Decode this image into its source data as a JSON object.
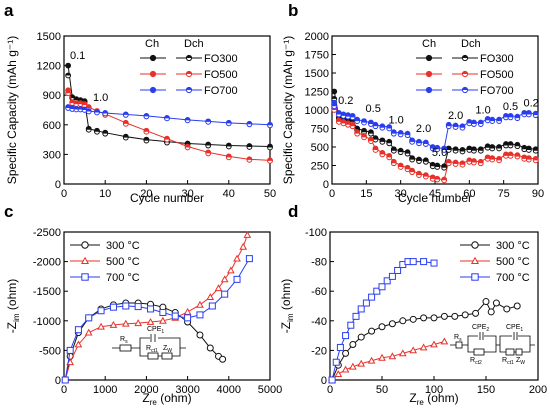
{
  "colors": {
    "black": "#111111",
    "red": "#e8312a",
    "blue": "#2a3ef0"
  },
  "chart_data": [
    {
      "panel": "a",
      "type": "scatter",
      "xlabel": "Cycle number",
      "ylabel": "Specific Capacity (mAh g⁻¹)",
      "xlim": [
        0,
        50
      ],
      "ylim": [
        0,
        1500
      ],
      "xticks": [
        "0",
        "10",
        "20",
        "30",
        "40",
        "50"
      ],
      "yticks": [
        "0",
        "300",
        "600",
        "900",
        "1200",
        "1500"
      ],
      "legend_headers": [
        "Ch",
        "Dch"
      ],
      "rate_labels": [
        "0.1",
        "1.0"
      ],
      "series": [
        {
          "name": "FO300",
          "color": "black",
          "x": [
            1,
            2,
            3,
            4,
            5,
            6,
            8,
            10,
            15,
            20,
            25,
            30,
            35,
            40,
            45,
            50
          ],
          "charge": [
            1200,
            880,
            860,
            850,
            840,
            560,
            540,
            520,
            480,
            450,
            430,
            410,
            400,
            390,
            385,
            380
          ],
          "discharge": [
            1100,
            870,
            850,
            840,
            830,
            550,
            530,
            510,
            470,
            440,
            420,
            400,
            390,
            380,
            375,
            370
          ]
        },
        {
          "name": "FO500",
          "color": "red",
          "x": [
            1,
            2,
            3,
            4,
            5,
            6,
            8,
            10,
            15,
            20,
            25,
            30,
            35,
            40,
            45,
            50
          ],
          "charge": [
            950,
            830,
            820,
            820,
            810,
            780,
            740,
            710,
            620,
            540,
            460,
            380,
            320,
            280,
            250,
            240
          ],
          "discharge": [
            920,
            820,
            810,
            810,
            800,
            770,
            730,
            700,
            610,
            530,
            450,
            370,
            310,
            270,
            245,
            235
          ]
        },
        {
          "name": "FO700",
          "color": "blue",
          "x": [
            1,
            2,
            3,
            4,
            5,
            6,
            8,
            10,
            15,
            20,
            25,
            30,
            35,
            40,
            45,
            50
          ],
          "charge": [
            780,
            770,
            760,
            760,
            755,
            740,
            730,
            720,
            705,
            690,
            670,
            650,
            635,
            620,
            610,
            600
          ],
          "discharge": [
            770,
            760,
            755,
            755,
            750,
            735,
            725,
            715,
            700,
            685,
            665,
            645,
            630,
            615,
            605,
            595
          ]
        }
      ]
    },
    {
      "panel": "b",
      "type": "scatter",
      "xlabel": "Cycle number",
      "ylabel": "Specific Capacity (mAh g⁻¹)",
      "xlim": [
        0,
        90
      ],
      "ylim": [
        0,
        2000
      ],
      "xticks": [
        "0",
        "15",
        "30",
        "45",
        "60",
        "75",
        "90"
      ],
      "yticks": [
        "0",
        "250",
        "500",
        "750",
        "1000",
        "1250",
        "1500",
        "1750",
        "2000"
      ],
      "legend_headers": [
        "Ch",
        "Dch"
      ],
      "rate_labels": [
        "0.2",
        "0.5",
        "1.0",
        "2.0",
        "5.0",
        "2.0",
        "1.0",
        "0.5",
        "0.2"
      ],
      "series": [
        {
          "name": "FO300",
          "color": "black",
          "x": [
            1,
            3,
            5,
            7,
            9,
            11,
            14,
            17,
            19,
            22,
            25,
            27,
            30,
            33,
            35,
            38,
            41,
            44,
            46,
            49,
            51,
            54,
            57,
            60,
            62,
            65,
            68,
            70,
            73,
            76,
            78,
            81,
            84,
            86,
            89
          ],
          "charge": [
            1250,
            900,
            880,
            870,
            860,
            750,
            720,
            700,
            620,
            590,
            570,
            470,
            450,
            430,
            350,
            330,
            320,
            260,
            250,
            240,
            480,
            470,
            460,
            480,
            470,
            470,
            510,
            500,
            500,
            540,
            540,
            530,
            490,
            480,
            470
          ],
          "discharge": [
            1150,
            880,
            860,
            850,
            840,
            730,
            700,
            680,
            600,
            570,
            550,
            450,
            430,
            410,
            330,
            310,
            300,
            240,
            230,
            220,
            460,
            450,
            440,
            460,
            450,
            450,
            490,
            480,
            480,
            520,
            520,
            510,
            470,
            460,
            450
          ]
        },
        {
          "name": "FO500",
          "color": "red",
          "x": [
            1,
            3,
            5,
            7,
            9,
            11,
            14,
            17,
            19,
            22,
            25,
            27,
            30,
            33,
            35,
            38,
            41,
            44,
            46,
            49,
            51,
            54,
            57,
            60,
            62,
            65,
            68,
            70,
            73,
            76,
            78,
            81,
            84,
            86,
            89
          ],
          "charge": [
            1050,
            860,
            840,
            820,
            800,
            700,
            650,
            600,
            480,
            420,
            380,
            300,
            250,
            220,
            180,
            140,
            120,
            90,
            70,
            60,
            300,
            290,
            280,
            320,
            310,
            300,
            360,
            350,
            340,
            400,
            400,
            390,
            360,
            350,
            340
          ],
          "discharge": [
            1000,
            840,
            820,
            800,
            780,
            680,
            630,
            580,
            460,
            400,
            360,
            280,
            230,
            200,
            160,
            120,
            100,
            70,
            60,
            50,
            280,
            270,
            260,
            300,
            290,
            280,
            340,
            330,
            320,
            380,
            380,
            370,
            340,
            330,
            320
          ]
        },
        {
          "name": "FO700",
          "color": "blue",
          "x": [
            1,
            3,
            5,
            7,
            9,
            11,
            14,
            17,
            19,
            22,
            25,
            27,
            30,
            33,
            35,
            38,
            41,
            44,
            46,
            49,
            51,
            54,
            57,
            60,
            62,
            65,
            68,
            70,
            73,
            76,
            78,
            81,
            84,
            86,
            89
          ],
          "charge": [
            1100,
            960,
            940,
            930,
            920,
            870,
            850,
            830,
            800,
            780,
            770,
            700,
            690,
            680,
            590,
            570,
            560,
            500,
            490,
            480,
            800,
            790,
            780,
            840,
            830,
            830,
            880,
            870,
            870,
            920,
            920,
            910,
            960,
            960,
            950
          ],
          "discharge": [
            1050,
            940,
            920,
            910,
            900,
            850,
            830,
            810,
            780,
            760,
            750,
            680,
            670,
            660,
            570,
            550,
            540,
            480,
            470,
            460,
            780,
            770,
            760,
            820,
            810,
            810,
            860,
            850,
            850,
            900,
            900,
            890,
            940,
            940,
            930
          ]
        }
      ]
    },
    {
      "panel": "c",
      "type": "scatter",
      "xlabel": "Z_re (ohm)",
      "ylabel": "-Z_im (ohm)",
      "xlim": [
        0,
        5000
      ],
      "ylim": [
        0,
        -2500
      ],
      "xticks": [
        "0",
        "1000",
        "2000",
        "3000",
        "4000",
        "5000"
      ],
      "yticks": [
        "0",
        "-500",
        "-1000",
        "-1500",
        "-2000",
        "-2500"
      ],
      "legend": [
        "300 °C",
        "500 °C",
        "700 °C"
      ],
      "circuit_labels": [
        "R_s",
        "CPE_1",
        "R_ct1",
        "Z_W"
      ],
      "series": [
        {
          "name": "300 °C",
          "color": "black",
          "marker": "circle",
          "x": [
            30,
            150,
            350,
            600,
            900,
            1200,
            1500,
            1800,
            2100,
            2400,
            2700,
            3000,
            3300,
            3550,
            3750,
            3850
          ],
          "y": [
            0,
            -400,
            -800,
            -1050,
            -1200,
            -1270,
            -1300,
            -1300,
            -1280,
            -1230,
            -1140,
            -980,
            -760,
            -540,
            -400,
            -350
          ]
        },
        {
          "name": "500 °C",
          "color": "red",
          "marker": "triangle",
          "x": [
            30,
            150,
            350,
            600,
            900,
            1200,
            1500,
            1800,
            2100,
            2400,
            2700,
            3000,
            3300,
            3550,
            3750,
            3900,
            4050,
            4200,
            4350,
            4450
          ],
          "y": [
            0,
            -300,
            -600,
            -800,
            -900,
            -930,
            -950,
            -960,
            -980,
            -1000,
            -1050,
            -1150,
            -1270,
            -1400,
            -1550,
            -1700,
            -1850,
            -2050,
            -2250,
            -2450
          ]
        },
        {
          "name": "700 °C",
          "color": "blue",
          "marker": "square",
          "x": [
            30,
            150,
            350,
            600,
            900,
            1200,
            1500,
            1800,
            2100,
            2400,
            2700,
            3000,
            3300,
            3600,
            3900,
            4200,
            4500
          ],
          "y": [
            0,
            -500,
            -850,
            -1050,
            -1170,
            -1230,
            -1250,
            -1240,
            -1200,
            -1140,
            -1080,
            -1050,
            -1100,
            -1250,
            -1450,
            -1700,
            -2050
          ]
        }
      ]
    },
    {
      "panel": "d",
      "type": "scatter",
      "xlabel": "Z_re (ohm)",
      "ylabel": "-Z_im (ohm)",
      "xlim": [
        0,
        200
      ],
      "ylim": [
        0,
        -100
      ],
      "xticks": [
        "0",
        "50",
        "100",
        "150",
        "200"
      ],
      "yticks": [
        "0",
        "-20",
        "-40",
        "-60",
        "-80",
        "-100"
      ],
      "legend": [
        "300 °C",
        "500 °C",
        "700 °C"
      ],
      "circuit_labels": [
        "R_s",
        "CPE_1",
        "R_ct1",
        "CPE_2",
        "R_ct2",
        "Z_W"
      ],
      "series": [
        {
          "name": "300 °C",
          "color": "black",
          "marker": "circle",
          "x": [
            2,
            8,
            15,
            22,
            30,
            40,
            50,
            60,
            70,
            80,
            90,
            100,
            110,
            120,
            130,
            140,
            150,
            155,
            160,
            170,
            180
          ],
          "y": [
            0,
            -10,
            -18,
            -24,
            -29,
            -33,
            -36,
            -38,
            -40,
            -41,
            -42,
            -42,
            -43,
            -43,
            -44,
            -45,
            -53,
            -46,
            -52,
            -48,
            -50
          ]
        },
        {
          "name": "500 °C",
          "color": "red",
          "marker": "triangle",
          "x": [
            2,
            8,
            15,
            22,
            30,
            40,
            50,
            60,
            70,
            80,
            90,
            100,
            110
          ],
          "y": [
            0,
            -4,
            -7,
            -9,
            -11,
            -13,
            -15,
            -16,
            -18,
            -20,
            -22,
            -24,
            -26
          ]
        },
        {
          "name": "700 °C",
          "color": "blue",
          "marker": "square",
          "x": [
            2,
            6,
            10,
            15,
            20,
            25,
            30,
            35,
            40,
            45,
            50,
            55,
            60,
            65,
            70,
            75,
            80,
            90,
            100
          ],
          "y": [
            0,
            -12,
            -22,
            -30,
            -37,
            -43,
            -48,
            -52,
            -56,
            -60,
            -63,
            -67,
            -70,
            -74,
            -78,
            -80,
            -80,
            -80,
            -79
          ]
        }
      ]
    }
  ]
}
